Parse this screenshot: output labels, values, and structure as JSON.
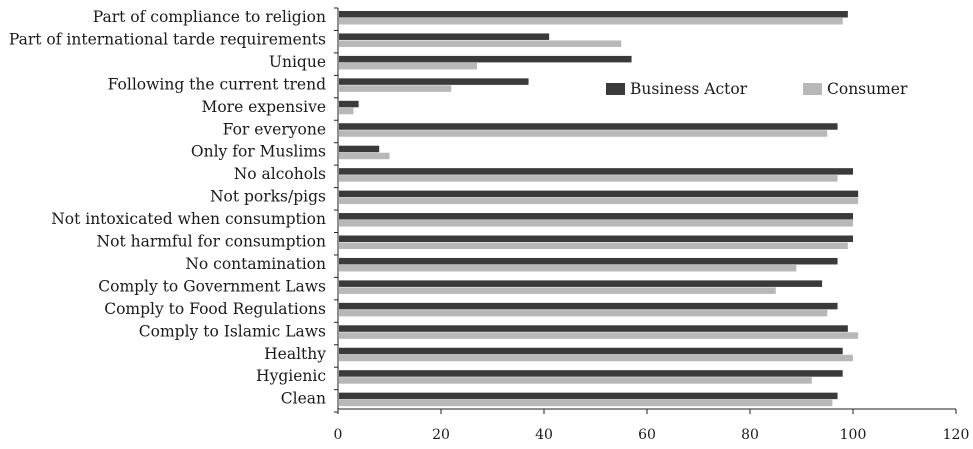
{
  "chart_data": {
    "type": "bar",
    "orientation": "horizontal",
    "categories": [
      "Part of compliance to religion",
      "Part of international tarde requirements",
      "Unique",
      "Following the current trend",
      "More expensive",
      "For everyone",
      "Only for Muslims",
      "No alcohols",
      "Not porks/pigs",
      "Not intoxicated when consumption",
      "Not harmful for consumption",
      "No contamination",
      "Comply to Government Laws",
      "Comply to Food Regulations",
      "Comply to Islamic Laws",
      "Healthy",
      "Hygienic",
      "Clean"
    ],
    "series": [
      {
        "name": "Business Actor",
        "color": "#3a3a3a",
        "values": [
          99,
          41,
          57,
          37,
          4,
          97,
          8,
          100,
          101,
          100,
          100,
          97,
          94,
          97,
          99,
          98,
          98,
          97
        ]
      },
      {
        "name": "Consumer",
        "color": "#b8b8b8",
        "values": [
          98,
          55,
          27,
          22,
          3,
          95,
          10,
          97,
          101,
          100,
          99,
          89,
          85,
          95,
          101,
          100,
          92,
          96
        ]
      }
    ],
    "xlim": [
      0,
      120
    ],
    "xticks": [
      "0",
      "20",
      "40",
      "60",
      "80",
      "100",
      "120"
    ],
    "legend_position": "top-right",
    "grid": false
  }
}
